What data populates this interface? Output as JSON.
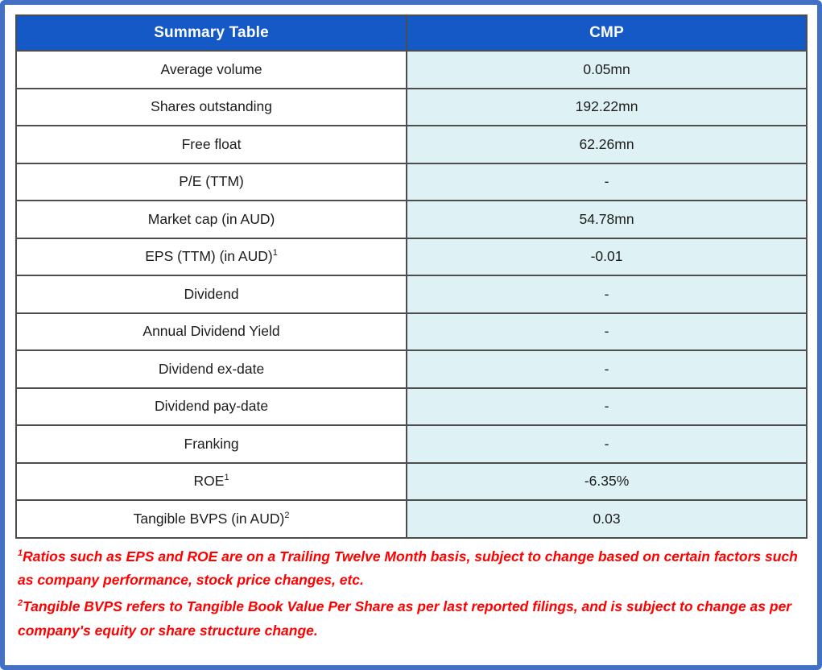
{
  "header": {
    "col1": "Summary Table",
    "col2": "CMP"
  },
  "rows": [
    {
      "label": "Average volume",
      "sup": "",
      "value": "0.05mn"
    },
    {
      "label": "Shares outstanding",
      "sup": "",
      "value": "192.22mn"
    },
    {
      "label": "Free float",
      "sup": "",
      "value": "62.26mn"
    },
    {
      "label": "P/E (TTM)",
      "sup": "",
      "value": "-"
    },
    {
      "label": "Market cap (in AUD)",
      "sup": "",
      "value": "54.78mn"
    },
    {
      "label": "EPS (TTM) (in AUD)",
      "sup": "1",
      "value": "-0.01"
    },
    {
      "label": "Dividend",
      "sup": "",
      "value": "-"
    },
    {
      "label": "Annual Dividend Yield",
      "sup": "",
      "value": "-"
    },
    {
      "label": "Dividend ex-date",
      "sup": "",
      "value": "-"
    },
    {
      "label": "Dividend pay-date",
      "sup": "",
      "value": "-"
    },
    {
      "label": "Franking",
      "sup": "",
      "value": "-"
    },
    {
      "label": "ROE",
      "sup": "1",
      "value": "-6.35%"
    },
    {
      "label": "Tangible BVPS (in AUD)",
      "sup": "2",
      "value": "0.03"
    }
  ],
  "footnotes": [
    {
      "marker": "1",
      "text": "Ratios such as EPS and ROE are on a Trailing Twelve Month basis, subject to change based on certain factors such as company performance, stock price changes, etc."
    },
    {
      "marker": "2",
      "text": "Tangible BVPS refers to Tangible Book Value Per Share as per last reported filings, and is subject to change as per company's equity or share structure change."
    }
  ],
  "colors": {
    "frame_border": "#4170c4",
    "header_bg": "#1559c7",
    "header_text": "#ffffff",
    "value_cell_bg": "#def1f5",
    "cell_border": "#4d4d4d",
    "body_text": "#1c1c1c",
    "footnote_text": "#ff0000"
  }
}
